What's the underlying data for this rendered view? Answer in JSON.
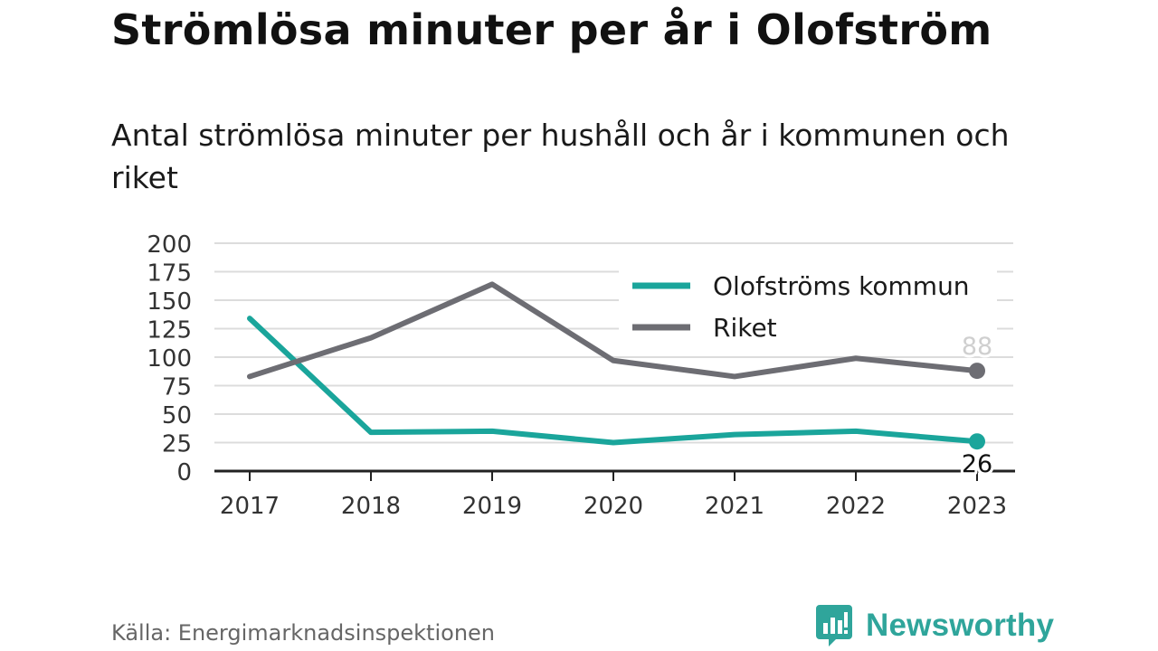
{
  "header": {
    "title": "Strömlösa minuter per år i Olofström",
    "subtitle": "Antal strömlösa minuter per hushåll och år i kommunen och riket"
  },
  "footer": {
    "source": "Källa: Energimarknadsinspektionen",
    "brand": "Newsworthy"
  },
  "colors": {
    "olofstrom": "#1aa59b",
    "riket": "#6d6d73",
    "grid": "#dcdcdc",
    "axis": "#222222"
  },
  "chart_data": {
    "type": "line",
    "title": "Strömlösa minuter per år i Olofström",
    "subtitle": "Antal strömlösa minuter per hushåll och år i kommunen och riket",
    "xlabel": "",
    "ylabel": "",
    "x": [
      "2017",
      "2018",
      "2019",
      "2020",
      "2021",
      "2022",
      "2023"
    ],
    "ylim": [
      0,
      200
    ],
    "yticks": [
      0,
      25,
      50,
      75,
      100,
      125,
      150,
      175,
      200
    ],
    "grid": true,
    "legend_position": "top-right",
    "series": [
      {
        "name": "Olofströms kommun",
        "color": "#1aa59b",
        "values": [
          134,
          34,
          35,
          25,
          32,
          35,
          26
        ],
        "end_label": "26"
      },
      {
        "name": "Riket",
        "color": "#6d6d73",
        "values": [
          83,
          117,
          164,
          97,
          83,
          99,
          88
        ],
        "end_label": "88"
      }
    ]
  }
}
